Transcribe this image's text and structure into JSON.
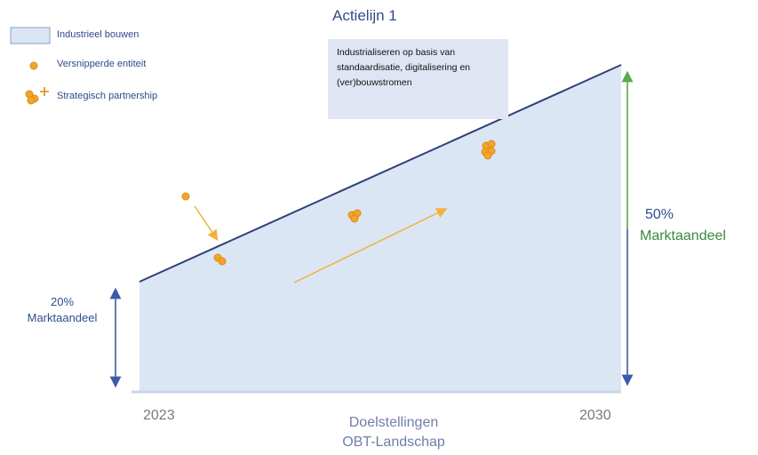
{
  "title": "Actielijn 1",
  "callout": {
    "line1": "Industrialiseren op basis van",
    "line2": "standaardisatie, digitalisering en",
    "line3": "(ver)bouwstromen"
  },
  "legend": {
    "items": [
      {
        "label": "Industrieel bouwen",
        "icon": "blue-area-swatch"
      },
      {
        "label": "Versnipperde entiteit",
        "icon": "orange-dot"
      },
      {
        "label": "Strategisch partnership",
        "icon": "orange-dots-plus"
      }
    ]
  },
  "left_share": {
    "percent": "20%",
    "label": "Marktaandeel"
  },
  "right_share": {
    "percent": "50%",
    "label": "Marktaandeel"
  },
  "years": {
    "start": "2023",
    "end": "2030"
  },
  "footer": {
    "line1": "Doelstellingen",
    "line2": "OBT-Landschap"
  },
  "colors": {
    "area": "#dbe6f5",
    "area_line": "#2f3f7a",
    "orange": "#f2a52b",
    "blue_arrow": "#3d5aa8",
    "green_arrow": "#5aa84b"
  }
}
